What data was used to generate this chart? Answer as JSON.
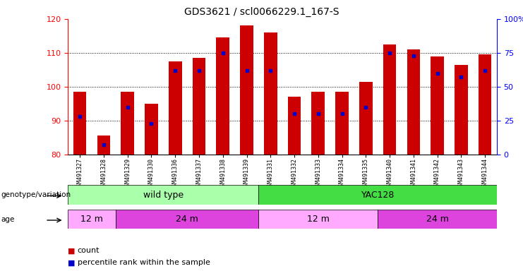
{
  "title": "GDS3621 / scl0066229.1_167-S",
  "samples": [
    "GSM491327",
    "GSM491328",
    "GSM491329",
    "GSM491330",
    "GSM491336",
    "GSM491337",
    "GSM491338",
    "GSM491339",
    "GSM491331",
    "GSM491332",
    "GSM491333",
    "GSM491334",
    "GSM491335",
    "GSM491340",
    "GSM491341",
    "GSM491342",
    "GSM491343",
    "GSM491344"
  ],
  "counts": [
    98.5,
    85.5,
    98.5,
    95.0,
    107.5,
    108.5,
    114.5,
    118.0,
    116.0,
    97.0,
    98.5,
    98.5,
    101.5,
    112.5,
    111.0,
    109.0,
    106.5,
    109.5
  ],
  "percentiles_pct": [
    28,
    7,
    35,
    23,
    62,
    62,
    75,
    62,
    62,
    30,
    30,
    30,
    35,
    75,
    73,
    60,
    57,
    62
  ],
  "ylim_left": [
    80,
    120
  ],
  "ylim_right": [
    0,
    100
  ],
  "yticks_left": [
    80,
    90,
    100,
    110,
    120
  ],
  "yticks_right": [
    0,
    25,
    50,
    75,
    100
  ],
  "bar_color": "#cc0000",
  "percentile_color": "#0000cc",
  "genotype_wt_color": "#aaffaa",
  "genotype_yac_color": "#44dd44",
  "age_12_color": "#ffaaff",
  "age_24_color": "#dd44dd",
  "wt_label": "wild type",
  "yac_label": "YAC128",
  "age_12_label": "12 m",
  "age_24_label": "24 m",
  "genotype_label": "genotype/variation",
  "age_label": "age",
  "legend_count": "count",
  "legend_percentile": "percentile rank within the sample",
  "wt_samples": 8,
  "yac_samples": 10,
  "wt_12m": 2,
  "wt_24m": 6,
  "yac_12m": 5,
  "yac_24m": 5
}
